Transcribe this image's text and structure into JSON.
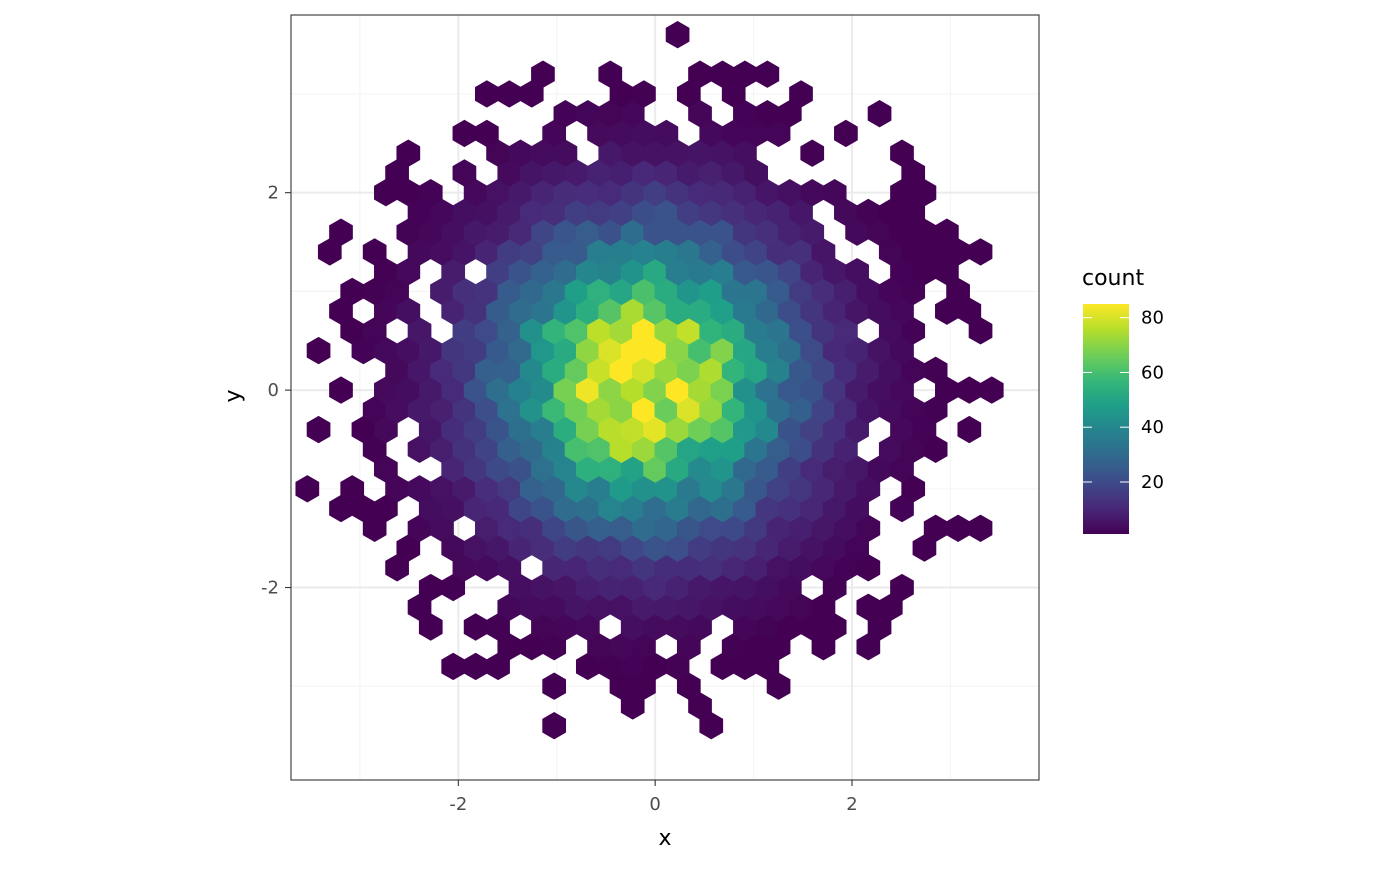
{
  "chart_data": {
    "type": "heatmap",
    "subtype": "hexbin",
    "xlabel": "x",
    "ylabel": "y",
    "xlim": [
      -3.7,
      3.9
    ],
    "ylim": [
      -3.95,
      3.8
    ],
    "x_ticks": [
      -2,
      0,
      2
    ],
    "x_tick_labels": [
      "-2",
      "0",
      "2"
    ],
    "y_ticks": [
      -2,
      0,
      2
    ],
    "y_tick_labels": [
      "-2",
      "0",
      "2"
    ],
    "grid": true,
    "theme": "bw",
    "legend": {
      "title": "count",
      "position": "right",
      "min": 1,
      "max": 85,
      "ticks": [
        20,
        40,
        60,
        80
      ],
      "tick_labels": [
        "20",
        "40",
        "60",
        "80"
      ]
    },
    "colors": {
      "scale": [
        "#440154",
        "#482878",
        "#3e4a89",
        "#31688e",
        "#26828e",
        "#1f9e89",
        "#35b779",
        "#6ece58",
        "#b5de2b",
        "#fde725"
      ],
      "panel_border": "#333333",
      "grid_major": "#ebebeb",
      "grid_minor": "#f5f5f5",
      "axis_text": "#4d4d4d",
      "axis_title": "#000000"
    },
    "bins": {
      "description": "hexagonal bins of bivariate standard normal sample (~10000 points); count peaks at ~85 near (-0.1, 0.1)",
      "binwidth_x": 0.228,
      "binwidth_y": 0.2,
      "peak": [
        -0.1,
        0.1
      ],
      "peak_count": 85,
      "sd": 1.0,
      "extent_radius": 3.7
    }
  }
}
